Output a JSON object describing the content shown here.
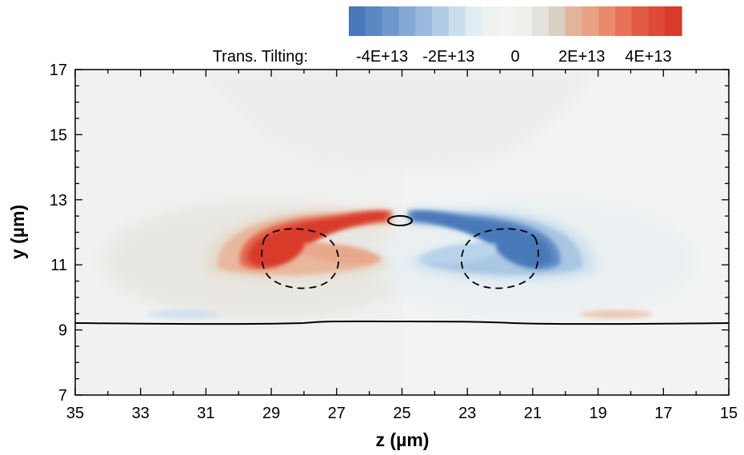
{
  "chart_data": {
    "type": "heatmap",
    "xlabel": "z (µm)",
    "ylabel": "y (µm)",
    "xlim": [
      35,
      15
    ],
    "ylim": [
      7,
      17
    ],
    "x_ticks": [
      "35",
      "33",
      "31",
      "29",
      "27",
      "25",
      "23",
      "21",
      "19",
      "17",
      "15"
    ],
    "y_ticks": [
      "7",
      "9",
      "11",
      "13",
      "15",
      "17"
    ],
    "colorbar": {
      "title": "Trans. Tilting:",
      "range": [
        -50000000000000,
        50000000000000
      ],
      "labels": [
        "-4E+13",
        "-2E+13",
        "0",
        "2E+13",
        "4E+13"
      ],
      "label_values": [
        -40000000000000,
        -20000000000000,
        0,
        20000000000000,
        40000000000000
      ],
      "colors": [
        "#4a78b8",
        "#5b88c2",
        "#6e98cc",
        "#84a9d5",
        "#9ab9de",
        "#b1cbe6",
        "#c9ddee",
        "#e0eef3",
        "#eef3ee",
        "#f3f3f1",
        "#efefec",
        "#e4e2dd",
        "#d8d0c4",
        "#e2b59a",
        "#e9a184",
        "#ea8a6c",
        "#e77258",
        "#e25c45",
        "#de4a36",
        "#d83a2b"
      ]
    },
    "features": [
      {
        "kind": "positive-lobe",
        "peak": 50000000000000,
        "z_range": [
          25.3,
          29.6
        ],
        "y_range": [
          10.8,
          12.8
        ]
      },
      {
        "kind": "negative-lobe",
        "peak": -50000000000000,
        "z_range": [
          20.4,
          24.7
        ],
        "y_range": [
          10.8,
          12.8
        ]
      },
      {
        "kind": "interface-line",
        "style": "solid",
        "y": 9.2
      },
      {
        "kind": "dashed-contour",
        "center": [
          28.2,
          11.2
        ]
      },
      {
        "kind": "dashed-contour",
        "center": [
          21.8,
          11.2
        ]
      },
      {
        "kind": "small-contour",
        "style": "solid",
        "center": [
          25.0,
          12.4
        ]
      }
    ]
  }
}
